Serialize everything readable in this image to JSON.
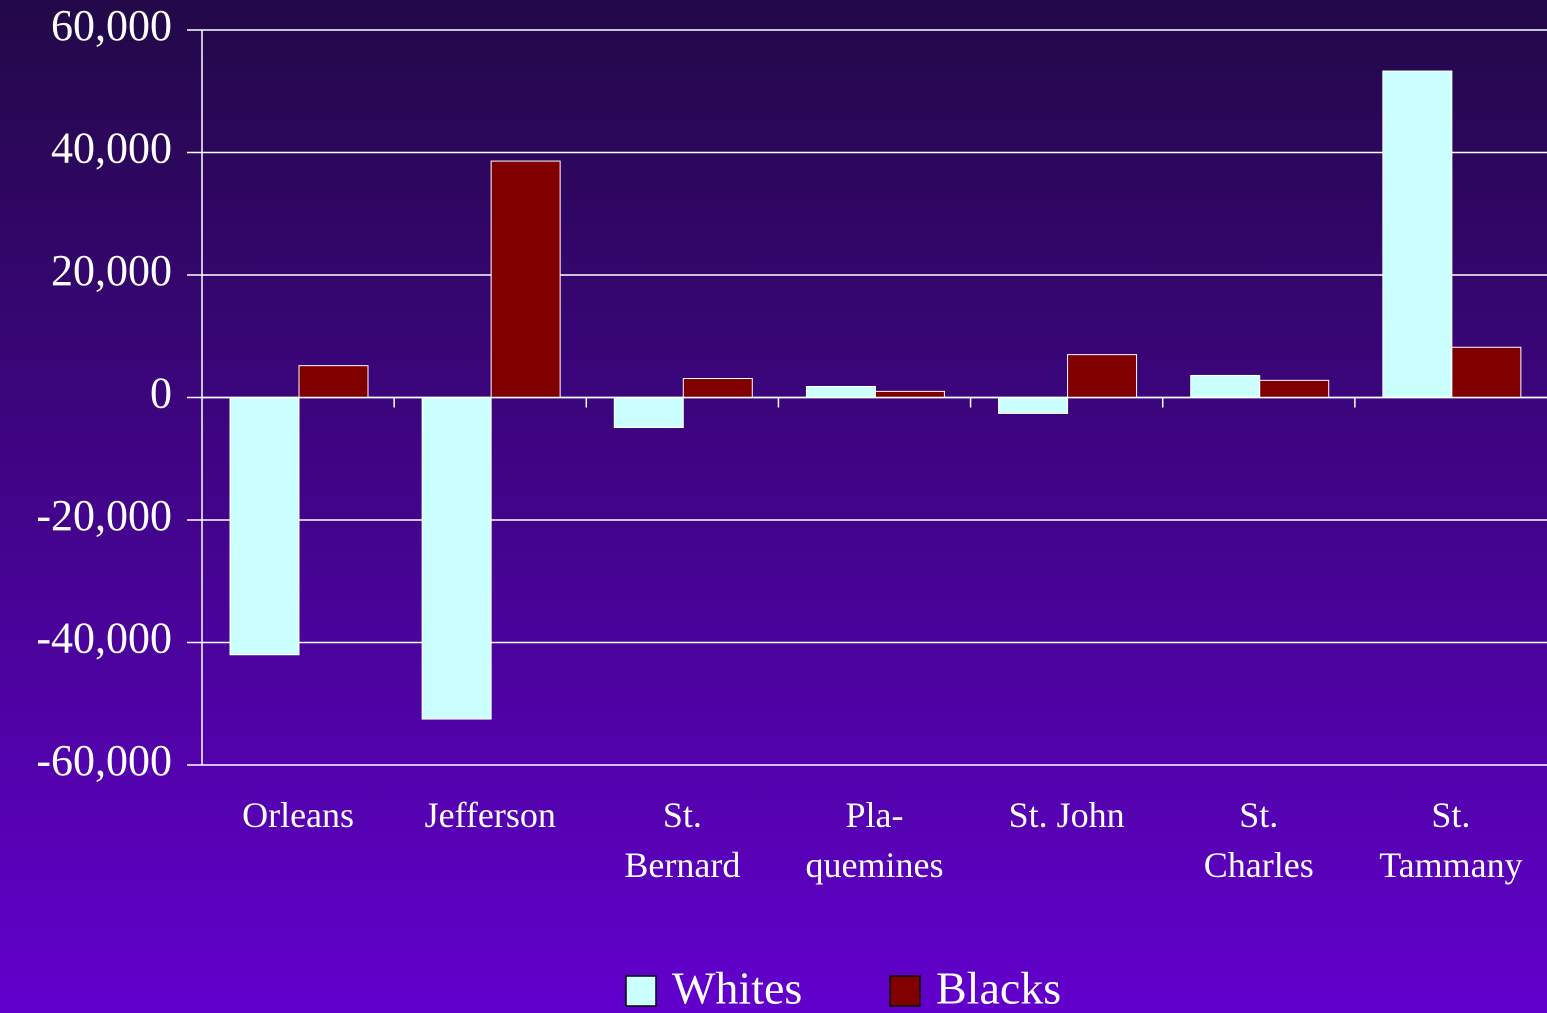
{
  "chart_data": {
    "type": "bar",
    "categories": [
      "Orleans",
      "Jefferson",
      "St.\nBernard",
      "Pla-\nquemines",
      "St. John",
      "St.\nCharles",
      "St.\nTammany"
    ],
    "series": [
      {
        "name": "Whites",
        "color": "#ccffff",
        "values": [
          -42000,
          -52500,
          -4900,
          1800,
          -2600,
          3600,
          53300
        ]
      },
      {
        "name": "Blacks",
        "color": "#800000",
        "values": [
          5200,
          38600,
          3100,
          1000,
          7000,
          2800,
          8200
        ]
      }
    ],
    "ylim": [
      -60000,
      60000
    ],
    "yticks": [
      {
        "value": -60000,
        "label": "-60,000"
      },
      {
        "value": -40000,
        "label": "-40,000"
      },
      {
        "value": -20000,
        "label": "-20,000"
      },
      0,
      {
        "value": 20000,
        "label": "20,000"
      },
      {
        "value": 40000,
        "label": "40,000"
      },
      {
        "value": 60000,
        "label": "60,000"
      }
    ],
    "grid": true,
    "legend": "bottom"
  }
}
